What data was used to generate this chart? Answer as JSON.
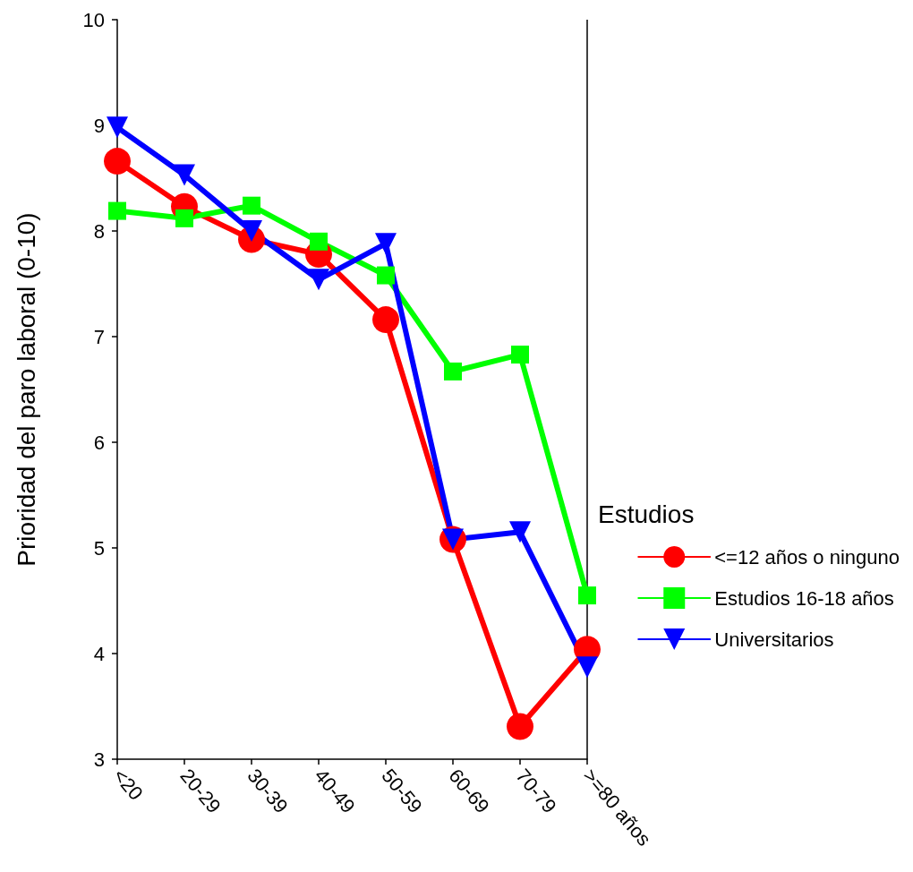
{
  "chart_data": {
    "type": "line",
    "ylabel": "Prioridad del paro laboral (0-10)",
    "legend_title": "Estudios",
    "legend": "right",
    "grid": false,
    "categories": [
      "<20",
      "20-29",
      "30-39",
      "40-49",
      "50-59",
      "60-69",
      "70-79",
      ">=80 años"
    ],
    "ylim": [
      3,
      10
    ],
    "yticks": [
      3,
      4,
      5,
      6,
      7,
      8,
      9,
      10
    ],
    "series": [
      {
        "name": "<=12 años o ninguno",
        "color": "#ff0000",
        "marker": "circle",
        "values": [
          8.66,
          8.23,
          7.92,
          7.78,
          7.16,
          5.08,
          3.31,
          4.04
        ]
      },
      {
        "name": "Estudios 16-18 años",
        "color": "#00ff00",
        "marker": "square",
        "values": [
          8.19,
          8.12,
          8.24,
          7.9,
          7.58,
          6.67,
          6.83,
          4.55
        ]
      },
      {
        "name": "Universitarios",
        "color": "#0000ff",
        "marker": "triangle",
        "values": [
          8.98,
          8.53,
          8.0,
          7.54,
          7.88,
          5.08,
          5.15,
          3.87
        ]
      }
    ]
  }
}
